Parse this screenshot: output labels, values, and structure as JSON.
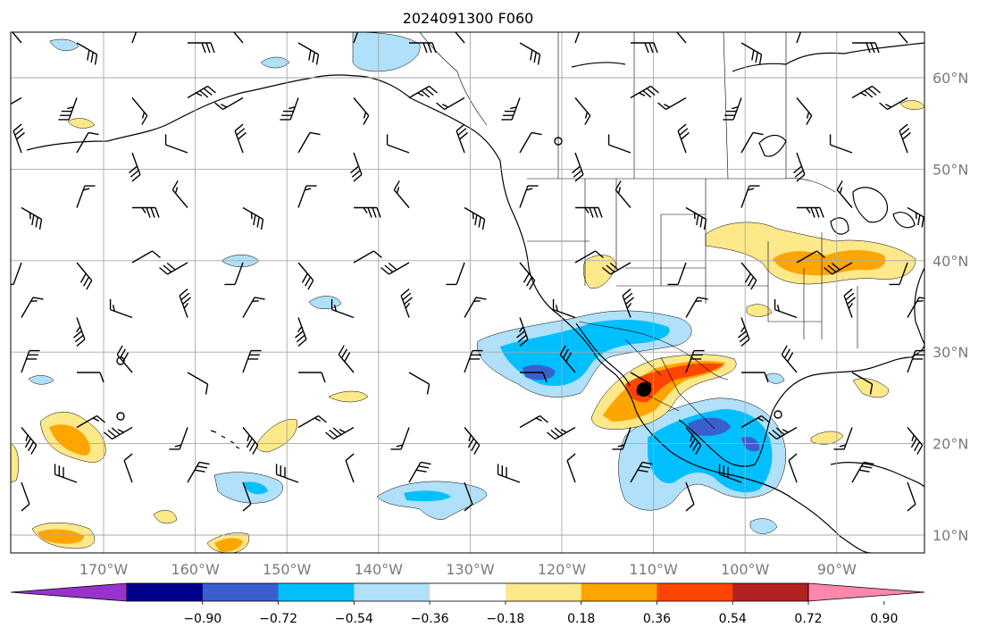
{
  "title": "2024091300 F060",
  "map": {
    "longitude_labels": [
      "170°W",
      "160°W",
      "150°W",
      "140°W",
      "130°W",
      "120°W",
      "110°W",
      "100°W",
      "90°W"
    ],
    "latitude_labels": [
      "60°N",
      "50°N",
      "40°N",
      "30°N",
      "20°N",
      "10°N"
    ],
    "field_colors": {
      "strong_negative": "#3a5fcd",
      "negative": "#00bfff",
      "weak_negative": "#b0e0fa",
      "weak_positive": "#fde98a",
      "positive": "#ffa500",
      "strong_positive": "#ff4500",
      "very_strong_positive": "#aa1e1e"
    },
    "wind_barbs": "wind-barb-icons"
  },
  "colorbar": {
    "colors": [
      "#9932cc",
      "#00008b",
      "#3a5fcd",
      "#00bfff",
      "#b0e0fa",
      "#ffffff",
      "#fde98a",
      "#ffa500",
      "#ff4500",
      "#b22222",
      "#ff88aa"
    ],
    "tick_labels": [
      "−0.90",
      "−0.72",
      "−0.54",
      "−0.36",
      "−0.18",
      "0.18",
      "0.36",
      "0.54",
      "0.72",
      "0.90"
    ],
    "extend": "both"
  }
}
